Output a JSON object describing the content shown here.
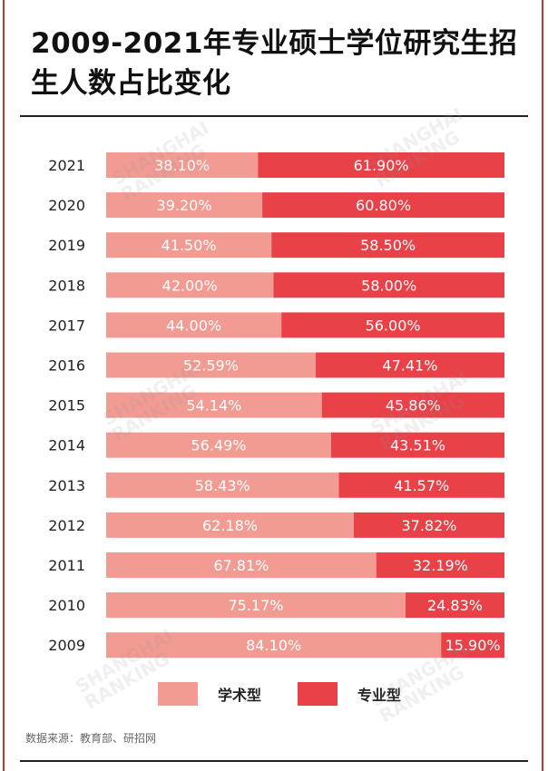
{
  "title": "2009-2021年专业硕士学位研究生招生人数占比变化",
  "source": "数据来源：教育部、研招网",
  "watermark": "SHANGHAI\nRANKING",
  "colors": {
    "academic": "#f29b93",
    "professional": "#e84148"
  },
  "chart_data": {
    "type": "bar",
    "orientation": "horizontal",
    "stacked": true,
    "percent": true,
    "categories": [
      "2021",
      "2020",
      "2019",
      "2018",
      "2017",
      "2016",
      "2015",
      "2014",
      "2013",
      "2012",
      "2011",
      "2010",
      "2009"
    ],
    "series": [
      {
        "name": "学术型",
        "values": [
          38.1,
          39.2,
          41.5,
          42.0,
          44.0,
          52.59,
          54.14,
          56.49,
          58.43,
          62.18,
          67.81,
          75.17,
          84.1
        ],
        "labels": [
          "38.10%",
          "39.20%",
          "41.50%",
          "42.00%",
          "44.00%",
          "52.59%",
          "54.14%",
          "56.49%",
          "58.43%",
          "62.18%",
          "67.81%",
          "75.17%",
          "84.10%"
        ]
      },
      {
        "name": "专业型",
        "values": [
          61.9,
          60.8,
          58.5,
          58.0,
          56.0,
          47.41,
          45.86,
          43.51,
          41.57,
          37.82,
          32.19,
          24.83,
          15.9
        ],
        "labels": [
          "61.90%",
          "60.80%",
          "58.50%",
          "58.00%",
          "56.00%",
          "47.41%",
          "45.86%",
          "43.51%",
          "41.57%",
          "37.82%",
          "32.19%",
          "24.83%",
          "15.90%"
        ]
      }
    ],
    "xlim": [
      0,
      100
    ],
    "grid": false,
    "legend": "bottom"
  }
}
